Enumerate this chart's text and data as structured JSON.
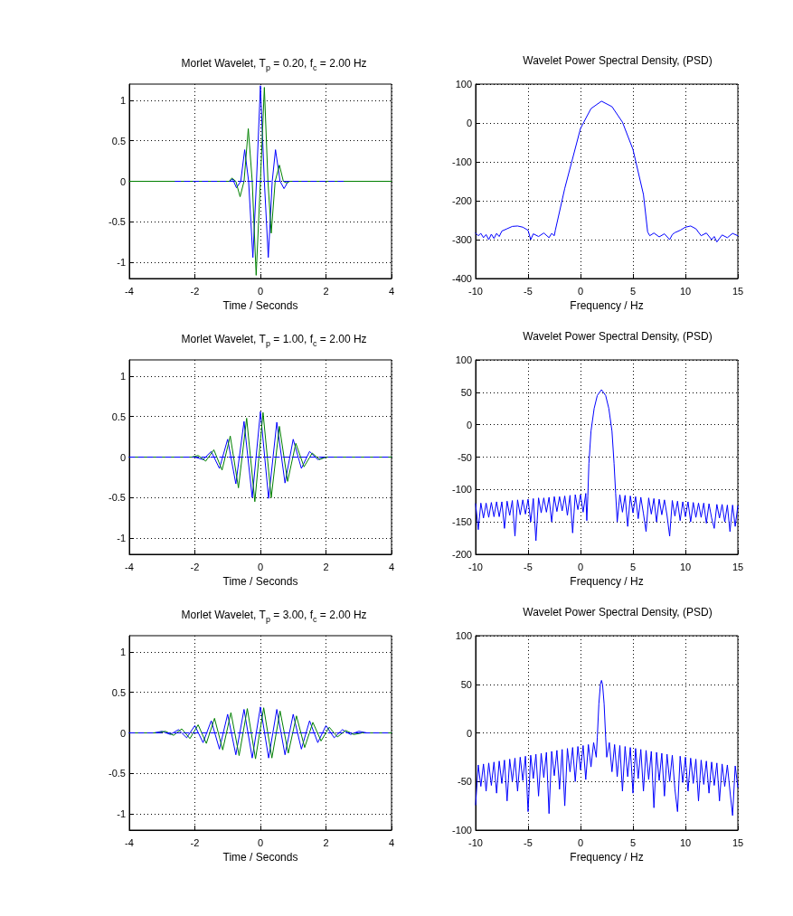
{
  "chart_data": [
    {
      "type": "line",
      "title": "Morlet Wavelet, T$_{p}$ = 0.20, f$_{c}$ = 2.00 Hz",
      "xlabel": "Time / Seconds",
      "xlim": [
        -4,
        4
      ],
      "xticks": [
        -4,
        -2,
        0,
        2,
        4
      ],
      "ylim": [
        -1.2,
        1.2
      ],
      "yticks": [
        -1,
        -0.5,
        0,
        0.5,
        1
      ],
      "grid": true,
      "marker": "none",
      "series": [
        {
          "color": "#0000ff",
          "x": [
            -2.6,
            -0.95,
            -0.85,
            -0.73,
            -0.6,
            -0.48,
            -0.36,
            -0.23,
            -0.12,
            0,
            0.12,
            0.24,
            0.36,
            0.46,
            0.6,
            0.72,
            0.85,
            2.6
          ],
          "values": [
            0,
            0,
            0.03,
            -0.08,
            0,
            0.39,
            0,
            -0.94,
            0,
            1.18,
            0,
            -0.94,
            0,
            0.39,
            0,
            -0.09,
            0,
            0
          ]
        },
        {
          "color": "#008000",
          "x": [
            -4,
            -0.95,
            -0.87,
            -0.75,
            -0.62,
            -0.5,
            -0.37,
            -0.25,
            -0.13,
            0,
            0.12,
            0.23,
            0.33,
            0.45,
            0.58,
            0.7,
            0.8,
            0.9,
            4
          ],
          "values": [
            0,
            0,
            0.04,
            0,
            -0.19,
            0,
            0.65,
            0,
            -1.16,
            0,
            1.16,
            0,
            -0.64,
            0,
            0.2,
            0,
            -0.02,
            0,
            0
          ]
        },
        {
          "color": "#0000ff",
          "line_style": "dashed",
          "x": [
            -2.6,
            2.6
          ],
          "values": [
            0,
            0
          ]
        }
      ]
    },
    {
      "type": "line",
      "title": "Wavelet Power Spectral Density, (PSD)",
      "xlabel": "Frequency / Hz",
      "xlim": [
        -10,
        15
      ],
      "xticks": [
        -10,
        -5,
        0,
        5,
        10,
        15
      ],
      "ylim": [
        -400,
        100
      ],
      "yticks": [
        -400,
        -300,
        -200,
        -100,
        0,
        100
      ],
      "grid": true,
      "marker": "none",
      "series": [
        {
          "color": "#0000ff",
          "x": [
            -10,
            -9.75,
            -9.5,
            -9.25,
            -9,
            -8.75,
            -8.5,
            -8.25,
            -8,
            -7.75,
            -7.5,
            -7,
            -6.5,
            -6,
            -5.5,
            -5,
            -4.75,
            -4.5,
            -4,
            -3.5,
            -3,
            -2.75,
            -2.5,
            -2.4,
            -1.5,
            0,
            1,
            2,
            3,
            4,
            5,
            6,
            6.4,
            6.6,
            7,
            7.5,
            8,
            8.5,
            8.75,
            9,
            9.5,
            10,
            10.5,
            11,
            11.5,
            12,
            12.5,
            12.75,
            13,
            13.5,
            14,
            14.5,
            15
          ],
          "values": [
            -283,
            -290,
            -284,
            -295,
            -287,
            -300,
            -286,
            -297,
            -284,
            -292,
            -278,
            -272,
            -266,
            -265,
            -268,
            -276,
            -300,
            -285,
            -292,
            -283,
            -295,
            -284,
            -290,
            -276,
            -168,
            -14,
            37,
            56,
            42,
            2,
            -68,
            -184,
            -280,
            -290,
            -283,
            -293,
            -285,
            -300,
            -287,
            -282,
            -276,
            -268,
            -265,
            -272,
            -290,
            -283,
            -300,
            -292,
            -306,
            -288,
            -295,
            -284,
            -290
          ]
        }
      ]
    },
    {
      "type": "line",
      "title": "Morlet Wavelet, T$_{p}$ = 1.00, f$_{c}$ = 2.00 Hz",
      "xlabel": "Time / Seconds",
      "xlim": [
        -4,
        4
      ],
      "xticks": [
        -4,
        -2,
        0,
        2,
        4
      ],
      "ylim": [
        -1.2,
        1.2
      ],
      "yticks": [
        -1,
        -0.5,
        0,
        0.5,
        1
      ],
      "grid": true,
      "marker": "none",
      "series": [
        {
          "color": "#0000ff",
          "x": [
            -4,
            -2,
            -1.75,
            -1.5,
            -1.25,
            -1,
            -0.75,
            -0.5,
            -0.25,
            0,
            0.25,
            0.5,
            0.75,
            1,
            1.25,
            1.5,
            1.75,
            2,
            4
          ],
          "values": [
            0,
            0,
            -0.03,
            0.07,
            -0.14,
            0.22,
            -0.33,
            0.44,
            -0.5,
            0.56,
            -0.51,
            0.43,
            -0.32,
            0.22,
            -0.14,
            0.07,
            -0.03,
            0,
            0
          ]
        },
        {
          "color": "#008000",
          "x": [
            -4,
            -2.1,
            -1.9,
            -1.67,
            -1.42,
            -1.17,
            -0.92,
            -0.67,
            -0.42,
            -0.17,
            0.08,
            0.33,
            0.58,
            0.83,
            1.08,
            1.33,
            1.58,
            1.8,
            2,
            4
          ],
          "values": [
            0,
            0,
            0.02,
            -0.05,
            0.09,
            -0.16,
            0.26,
            -0.38,
            0.48,
            -0.55,
            0.55,
            -0.5,
            0.38,
            -0.3,
            0.17,
            -0.12,
            0.05,
            -0.03,
            0,
            0
          ]
        },
        {
          "color": "#0000ff",
          "line_style": "dashed",
          "x": [
            -4,
            4
          ],
          "values": [
            0,
            0
          ]
        }
      ]
    },
    {
      "type": "line",
      "title": "Wavelet Power Spectral Density, (PSD)",
      "xlabel": "Frequency / Hz",
      "xlim": [
        -10,
        15
      ],
      "xticks": [
        -10,
        -5,
        0,
        5,
        10,
        15
      ],
      "ylim": [
        -200,
        100
      ],
      "yticks": [
        -200,
        -150,
        -100,
        -50,
        0,
        50,
        100
      ],
      "grid": true,
      "marker": "none",
      "series": [
        {
          "color": "#0000ff",
          "x": [
            -10,
            -9.75,
            -9.5,
            -9.25,
            -9,
            -8.75,
            -8.5,
            -8.25,
            -8,
            -7.75,
            -7.5,
            -7.25,
            -7,
            -6.75,
            -6.5,
            -6.25,
            -6,
            -5.75,
            -5.5,
            -5.25,
            -5,
            -4.75,
            -4.5,
            -4.25,
            -4,
            -3.75,
            -3.5,
            -3.25,
            -3,
            -2.75,
            -2.5,
            -2.25,
            -2,
            -1.75,
            -1.5,
            -1.25,
            -1,
            -0.75,
            -0.5,
            -0.25,
            0,
            0.25,
            0.5,
            0.6,
            0.7,
            0.8,
            1,
            1.3,
            1.6,
            2,
            2.4,
            2.7,
            3,
            3.2,
            3.35,
            3.5,
            3.75,
            4,
            4.25,
            4.5,
            4.75,
            5,
            5.25,
            5.5,
            5.75,
            6,
            6.25,
            6.5,
            6.75,
            7,
            7.25,
            7.5,
            7.75,
            8,
            8.25,
            8.5,
            8.75,
            9,
            9.25,
            9.5,
            9.75,
            10,
            10.25,
            10.5,
            10.75,
            11,
            11.25,
            11.5,
            11.75,
            12,
            12.25,
            12.5,
            12.75,
            13,
            13.25,
            13.5,
            13.75,
            14,
            14.25,
            14.5,
            14.75,
            15
          ],
          "values": [
            -122,
            -162,
            -121,
            -144,
            -121,
            -143,
            -120,
            -142,
            -119,
            -142,
            -119,
            -160,
            -118,
            -140,
            -117,
            -172,
            -116,
            -139,
            -116,
            -138,
            -115,
            -150,
            -114,
            -179,
            -113,
            -136,
            -113,
            -135,
            -112,
            -150,
            -111,
            -134,
            -111,
            -133,
            -110,
            -140,
            -109,
            -167,
            -108,
            -131,
            -108,
            -135,
            -106,
            -148,
            -110,
            -60,
            -10,
            25,
            45,
            54,
            45,
            25,
            -10,
            -60,
            -106,
            -150,
            -108,
            -135,
            -109,
            -157,
            -110,
            -136,
            -111,
            -145,
            -112,
            -137,
            -165,
            -113,
            -138,
            -114,
            -150,
            -115,
            -139,
            -116,
            -140,
            -172,
            -117,
            -141,
            -118,
            -148,
            -119,
            -142,
            -119,
            -150,
            -120,
            -143,
            -121,
            -143,
            -121,
            -152,
            -122,
            -144,
            -160,
            -123,
            -144,
            -123,
            -150,
            -124,
            -165,
            -124,
            -157,
            -125
          ]
        }
      ]
    },
    {
      "type": "line",
      "title": "Morlet Wavelet, T$_{p}$ = 3.00, f$_{c}$ = 2.00 Hz",
      "xlabel": "Time / Seconds",
      "xlim": [
        -4,
        4
      ],
      "xticks": [
        -4,
        -2,
        0,
        2,
        4
      ],
      "ylim": [
        -1.2,
        1.2
      ],
      "yticks": [
        -1,
        -0.5,
        0,
        0.5,
        1
      ],
      "grid": true,
      "marker": "none",
      "series": [
        {
          "color": "#0000ff",
          "x": [
            -4,
            -3.25,
            -3,
            -2.75,
            -2.5,
            -2.25,
            -2,
            -1.75,
            -1.5,
            -1.25,
            -1,
            -0.75,
            -0.5,
            -0.25,
            0,
            0.25,
            0.5,
            0.75,
            1,
            1.25,
            1.5,
            1.75,
            2,
            2.25,
            2.5,
            2.75,
            3,
            3.25,
            4
          ],
          "values": [
            0,
            0,
            0.02,
            -0.02,
            0.04,
            -0.06,
            0.09,
            -0.12,
            0.15,
            -0.2,
            0.23,
            -0.27,
            0.29,
            -0.31,
            0.32,
            -0.31,
            0.29,
            -0.27,
            0.23,
            -0.2,
            0.15,
            -0.12,
            0.09,
            -0.06,
            0.04,
            -0.02,
            0.02,
            0,
            0
          ]
        },
        {
          "color": "#008000",
          "x": [
            -4,
            -3.15,
            -2.9,
            -2.65,
            -2.4,
            -2.15,
            -1.9,
            -1.65,
            -1.4,
            -1.15,
            -0.9,
            -0.65,
            -0.4,
            -0.15,
            0.1,
            0.35,
            0.6,
            0.85,
            1.1,
            1.35,
            1.6,
            1.85,
            2.1,
            2.35,
            2.6,
            2.85,
            3.1,
            4
          ],
          "values": [
            0,
            0,
            0.02,
            -0.03,
            0.05,
            -0.07,
            0.1,
            -0.13,
            0.18,
            -0.21,
            0.25,
            -0.28,
            0.3,
            -0.32,
            0.31,
            -0.31,
            0.27,
            -0.25,
            0.21,
            -0.18,
            0.13,
            -0.1,
            0.07,
            -0.05,
            0.03,
            -0.02,
            0,
            0
          ]
        },
        {
          "color": "#0000ff",
          "line_style": "dashed",
          "x": [
            -4,
            4
          ],
          "values": [
            0,
            0
          ]
        }
      ]
    },
    {
      "type": "line",
      "title": "Wavelet Power Spectral Density, (PSD)",
      "xlabel": "Frequency / Hz",
      "xlim": [
        -10,
        15
      ],
      "xticks": [
        -10,
        -5,
        0,
        5,
        10,
        15
      ],
      "ylim": [
        -100,
        100
      ],
      "yticks": [
        -100,
        -50,
        0,
        50,
        100
      ],
      "grid": true,
      "marker": "none",
      "series": [
        {
          "color": "#0000ff",
          "x": [
            -10,
            -9.75,
            -9.5,
            -9.25,
            -9,
            -8.75,
            -8.5,
            -8.25,
            -8,
            -7.75,
            -7.5,
            -7.25,
            -7,
            -6.75,
            -6.5,
            -6.25,
            -6,
            -5.75,
            -5.5,
            -5.25,
            -5,
            -4.75,
            -4.5,
            -4.25,
            -4,
            -3.75,
            -3.5,
            -3.25,
            -3,
            -2.75,
            -2.5,
            -2.25,
            -2,
            -1.75,
            -1.5,
            -1.25,
            -1,
            -0.75,
            -0.5,
            -0.25,
            0,
            0.25,
            0.5,
            0.75,
            1,
            1.25,
            1.5,
            1.6,
            1.75,
            1.9,
            2,
            2.1,
            2.25,
            2.4,
            2.5,
            2.75,
            3,
            3.25,
            3.5,
            3.75,
            4,
            4.25,
            4.5,
            4.75,
            5,
            5.25,
            5.5,
            5.75,
            6,
            6.25,
            6.5,
            6.75,
            7,
            7.25,
            7.5,
            7.75,
            8,
            8.25,
            8.5,
            8.75,
            9,
            9.25,
            9.5,
            9.75,
            10,
            10.25,
            10.5,
            10.75,
            11,
            11.25,
            11.5,
            11.75,
            12,
            12.25,
            12.5,
            12.75,
            13,
            13.25,
            13.5,
            13.75,
            14,
            14.25,
            14.5,
            14.75,
            15
          ],
          "values": [
            -74,
            -33,
            -55,
            -32,
            -60,
            -31,
            -54,
            -30,
            -62,
            -29,
            -52,
            -28,
            -70,
            -27,
            -50,
            -26,
            -60,
            -25,
            -49,
            -24,
            -81,
            -23,
            -47,
            -22,
            -65,
            -21,
            -46,
            -20,
            -83,
            -19,
            -44,
            -18,
            -58,
            -17,
            -75,
            -16,
            -40,
            -15,
            -50,
            -14,
            -38,
            -13,
            -48,
            -12,
            -35,
            -10,
            -25,
            -5,
            30,
            50,
            54,
            50,
            30,
            -5,
            -25,
            -10,
            -40,
            -12,
            -45,
            -13,
            -60,
            -14,
            -45,
            -15,
            -62,
            -16,
            -47,
            -17,
            -60,
            -18,
            -48,
            -19,
            -77,
            -20,
            -49,
            -21,
            -65,
            -22,
            -50,
            -23,
            -58,
            -81,
            -24,
            -51,
            -25,
            -60,
            -26,
            -52,
            -27,
            -70,
            -28,
            -53,
            -29,
            -62,
            -30,
            -54,
            -31,
            -70,
            -32,
            -55,
            -33,
            -60,
            -85,
            -34,
            -56
          ]
        }
      ]
    }
  ]
}
